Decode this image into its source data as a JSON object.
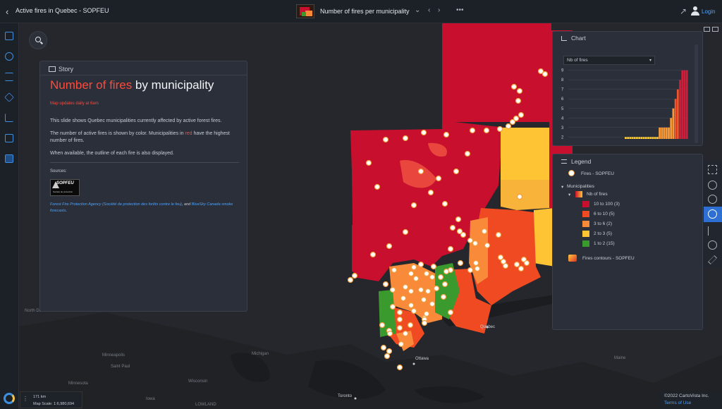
{
  "topbar": {
    "app_title": "Active fires in Quebec - SOPFEU",
    "view_title": "Number of fires per municipality",
    "login": "Login",
    "more": "•••",
    "prev": "‹",
    "next": "›",
    "dropdown": "⌄"
  },
  "story": {
    "header": "Story",
    "title_highlight": "Number of fires",
    "title_rest": " by municipality",
    "update_note": "Map updates daily at 6am",
    "p1": "This slide shows Quebec municipalities currently affected by active forest fires.",
    "p2_a": "The number of active fires is shown by color. Municipalities in ",
    "p2_red": "red",
    "p2_b": " have the highest number of fires.",
    "p3": "When available, the outline of each fire is also displayed.",
    "sources_label": "Sources:",
    "logo_text": "SOPFEU",
    "logo_sub": "Société de protection",
    "credit_link1": "Forest Fire Protection Agency (Société de protection des forêts contre le feu)",
    "credit_and": ", and ",
    "credit_link2": "BlueSky Canada smoke forecasts",
    "credit_end": "."
  },
  "chart": {
    "header": "Chart",
    "select_value": "Nb of fires"
  },
  "chart_data": {
    "type": "bar",
    "title": "",
    "xlabel": "",
    "ylabel": "",
    "ylim": [
      1.8,
      9.2
    ],
    "yticks": [
      2,
      3,
      4,
      5,
      6,
      7,
      8,
      9
    ],
    "values": [
      2,
      2,
      2,
      2,
      2,
      2,
      2,
      2,
      2,
      2,
      2,
      2,
      2,
      2,
      2,
      3,
      3,
      3,
      3,
      3,
      4,
      5,
      6,
      7,
      8,
      9,
      9,
      9
    ],
    "colors": [
      "#ffcc33",
      "#f99a3a",
      "#f0552e",
      "#d01e3a"
    ],
    "grid": true
  },
  "legend": {
    "header": "Legend",
    "fires_label": "Fires - SOPFEU",
    "municipalities_label": "Municipalities",
    "nb_fires_label": "Nb of fires",
    "classes": [
      {
        "label": "10 to 100 (3)",
        "color": "#c8102e"
      },
      {
        "label": "6 to 10 (5)",
        "color": "#f04a23"
      },
      {
        "label": "3 to 6 (2)",
        "color": "#f88a3a"
      },
      {
        "label": "2 to 3 (5)",
        "color": "#ffc433"
      },
      {
        "label": "1 to 2 (15)",
        "color": "#3a9a2e"
      }
    ],
    "contours_label": "Fires contours - SOPFEU"
  },
  "map": {
    "labels": {
      "north_dakota": "North Dakota",
      "quebec": "Quebec",
      "ottawa": "Ottawa",
      "toronto": "Toronto",
      "minneapolis": "Minneapolis",
      "saint_paul": "Saint Paul",
      "michigan": "Michigan",
      "wisconsin": "Wisconsin",
      "maine": "Maine",
      "lowland": "LOWLAND",
      "minnesota": "Minnesota",
      "iowa": "Iowa"
    }
  },
  "scale": {
    "distance": "171 km",
    "scale_text": "Map Scale: 1:6,980,694"
  },
  "footer": {
    "copyright": "©2022 CartoVista Inc.",
    "terms": "Terms of Use"
  },
  "colors": {
    "accent": "#2d6fd3",
    "red_class": "#c8102e"
  }
}
